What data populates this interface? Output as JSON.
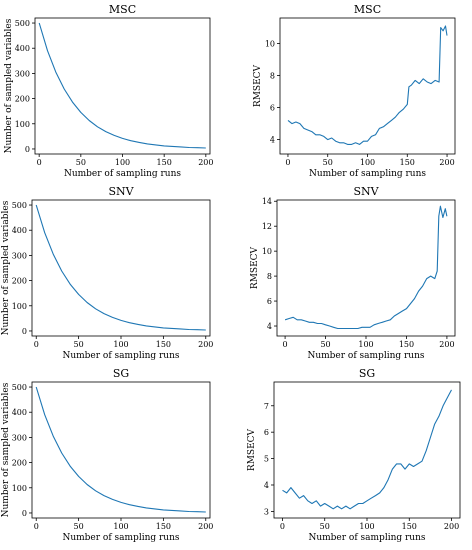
{
  "chart_data": [
    {
      "type": "line",
      "title": "MSC",
      "xlabel": "Number of sampling runs",
      "ylabel": "Number of sampled variables",
      "xlim": [
        -5,
        205
      ],
      "ylim": [
        -20,
        520
      ],
      "xticks": [
        0,
        50,
        100,
        150,
        200
      ],
      "yticks": [
        0,
        100,
        200,
        300,
        400,
        500
      ],
      "grid": false,
      "color": "#1f77b4",
      "series": [
        {
          "x": [
            0,
            10,
            20,
            30,
            40,
            50,
            60,
            70,
            80,
            90,
            100,
            110,
            120,
            130,
            140,
            150,
            160,
            170,
            180,
            190,
            200
          ],
          "y": [
            500,
            390,
            305,
            238,
            186,
            145,
            113,
            88,
            69,
            54,
            42,
            33,
            26,
            20,
            16,
            12,
            10,
            8,
            6,
            5,
            4
          ]
        }
      ]
    },
    {
      "type": "line",
      "title": "MSC",
      "xlabel": "Number of sampling runs",
      "ylabel": "RMSECV",
      "xlim": [
        -10,
        210
      ],
      "ylim": [
        3.1,
        11.6
      ],
      "xticks": [
        0,
        50,
        100,
        150,
        200
      ],
      "yticks": [
        4,
        6,
        8,
        10
      ],
      "grid": false,
      "color": "#1f77b4",
      "series": [
        {
          "x": [
            0,
            5,
            10,
            15,
            20,
            25,
            30,
            35,
            40,
            45,
            50,
            55,
            60,
            65,
            70,
            75,
            80,
            85,
            90,
            95,
            100,
            105,
            110,
            115,
            120,
            125,
            130,
            135,
            140,
            145,
            150,
            152,
            155,
            160,
            165,
            170,
            175,
            180,
            185,
            190,
            192,
            195,
            198,
            200
          ],
          "y": [
            5.2,
            5.0,
            5.1,
            5.0,
            4.7,
            4.6,
            4.5,
            4.3,
            4.3,
            4.2,
            4.0,
            4.1,
            3.9,
            3.8,
            3.8,
            3.7,
            3.7,
            3.8,
            3.7,
            3.9,
            3.9,
            4.2,
            4.3,
            4.7,
            4.8,
            5.0,
            5.2,
            5.4,
            5.7,
            5.9,
            6.2,
            7.3,
            7.4,
            7.7,
            7.5,
            7.8,
            7.6,
            7.5,
            7.7,
            7.6,
            11.0,
            10.8,
            11.1,
            10.5
          ]
        }
      ]
    },
    {
      "type": "line",
      "title": "SNV",
      "xlabel": "Number of sampling runs",
      "ylabel": "Number of sampled variables",
      "xlim": [
        -5,
        205
      ],
      "ylim": [
        -20,
        520
      ],
      "xticks": [
        0,
        50,
        100,
        150,
        200
      ],
      "yticks": [
        0,
        100,
        200,
        300,
        400,
        500
      ],
      "grid": false,
      "color": "#1f77b4",
      "series": [
        {
          "x": [
            0,
            10,
            20,
            30,
            40,
            50,
            60,
            70,
            80,
            90,
            100,
            110,
            120,
            130,
            140,
            150,
            160,
            170,
            180,
            190,
            200
          ],
          "y": [
            500,
            390,
            305,
            238,
            186,
            145,
            113,
            88,
            69,
            54,
            42,
            33,
            26,
            20,
            16,
            12,
            10,
            8,
            6,
            5,
            4
          ]
        }
      ]
    },
    {
      "type": "line",
      "title": "SNV",
      "xlabel": "Number of sampling runs",
      "ylabel": "RMSECV",
      "xlim": [
        -10,
        210
      ],
      "ylim": [
        3.2,
        14.1
      ],
      "xticks": [
        0,
        50,
        100,
        150,
        200
      ],
      "yticks": [
        4,
        6,
        8,
        10,
        12,
        14
      ],
      "grid": false,
      "color": "#1f77b4",
      "series": [
        {
          "x": [
            0,
            5,
            10,
            15,
            20,
            25,
            30,
            35,
            40,
            45,
            50,
            55,
            60,
            65,
            70,
            75,
            80,
            85,
            90,
            95,
            100,
            105,
            110,
            115,
            120,
            125,
            130,
            135,
            140,
            145,
            150,
            155,
            160,
            165,
            170,
            175,
            180,
            185,
            188,
            190,
            192,
            195,
            198,
            200
          ],
          "y": [
            4.5,
            4.6,
            4.7,
            4.5,
            4.5,
            4.4,
            4.3,
            4.3,
            4.2,
            4.2,
            4.1,
            4.0,
            3.9,
            3.8,
            3.8,
            3.8,
            3.8,
            3.8,
            3.8,
            3.9,
            3.9,
            3.9,
            4.1,
            4.2,
            4.3,
            4.4,
            4.5,
            4.8,
            5.0,
            5.2,
            5.4,
            5.8,
            6.2,
            6.8,
            7.2,
            7.8,
            8.0,
            7.8,
            8.4,
            12.8,
            13.6,
            12.7,
            13.4,
            12.8
          ]
        }
      ]
    },
    {
      "type": "line",
      "title": "SG",
      "xlabel": "Number of sampling runs",
      "ylabel": "Number of sampled variables",
      "xlim": [
        -5,
        205
      ],
      "ylim": [
        -20,
        520
      ],
      "xticks": [
        0,
        50,
        100,
        150,
        200
      ],
      "yticks": [
        0,
        100,
        200,
        300,
        400,
        500
      ],
      "grid": false,
      "color": "#1f77b4",
      "series": [
        {
          "x": [
            0,
            10,
            20,
            30,
            40,
            50,
            60,
            70,
            80,
            90,
            100,
            110,
            120,
            130,
            140,
            150,
            160,
            170,
            180,
            190,
            200
          ],
          "y": [
            500,
            390,
            305,
            238,
            186,
            145,
            113,
            88,
            69,
            54,
            42,
            33,
            26,
            20,
            16,
            12,
            10,
            8,
            6,
            5,
            4
          ]
        }
      ]
    },
    {
      "type": "line",
      "title": "SG",
      "xlabel": "Number of sampling runs",
      "ylabel": "RMSECV",
      "xlim": [
        -10,
        210
      ],
      "ylim": [
        2.75,
        7.9
      ],
      "xticks": [
        0,
        50,
        100,
        150,
        200
      ],
      "yticks": [
        3,
        4,
        5,
        6,
        7
      ],
      "grid": false,
      "color": "#1f77b4",
      "series": [
        {
          "x": [
            0,
            5,
            10,
            15,
            20,
            25,
            30,
            35,
            40,
            45,
            50,
            55,
            60,
            65,
            70,
            75,
            80,
            85,
            90,
            95,
            100,
            105,
            110,
            115,
            120,
            125,
            130,
            135,
            140,
            145,
            150,
            155,
            160,
            165,
            170,
            175,
            180,
            185,
            190,
            195,
            200
          ],
          "y": [
            3.8,
            3.7,
            3.9,
            3.7,
            3.5,
            3.6,
            3.4,
            3.3,
            3.4,
            3.2,
            3.3,
            3.2,
            3.1,
            3.2,
            3.1,
            3.2,
            3.1,
            3.2,
            3.3,
            3.3,
            3.4,
            3.5,
            3.6,
            3.7,
            3.9,
            4.2,
            4.6,
            4.8,
            4.8,
            4.6,
            4.8,
            4.7,
            4.8,
            4.9,
            5.3,
            5.8,
            6.3,
            6.6,
            7.0,
            7.3,
            7.6
          ]
        }
      ]
    }
  ]
}
